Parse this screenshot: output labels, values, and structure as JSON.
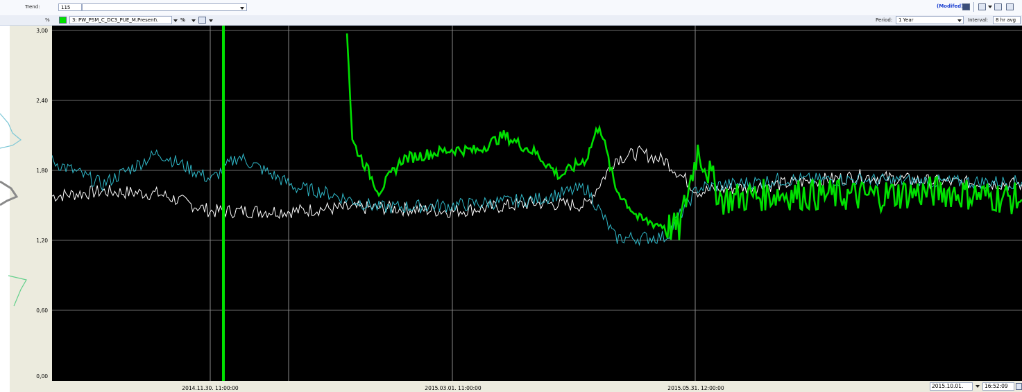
{
  "toolbar": {
    "trend_label": "Trend:",
    "trend_value": "115",
    "trend_name_value": "",
    "modified_label": "(Modifed)",
    "unit_label": "%",
    "series_selector": "3: PW_PSM_C_DC3_PUE_M.Present\\",
    "series_color": "#00e000",
    "percent_menu": "%",
    "period_label": "Period:",
    "period_value": "1 Year",
    "interval_label": "Interval:",
    "interval_value": "8 hr avg"
  },
  "y_axis": {
    "ticks": [
      "3,00",
      "2,40",
      "1,80",
      "1,20",
      "0,60",
      "0,00"
    ],
    "values": [
      3.0,
      2.4,
      1.8,
      1.2,
      0.6,
      0.0
    ]
  },
  "x_axis": {
    "ticks": [
      "2014.11.30. 11:00:00",
      "2015.03.01. 11:00:00",
      "2015.05.31. 12:00:00"
    ]
  },
  "footer": {
    "end_date": "2015.10.01.",
    "end_time": "16:52:09"
  },
  "chart_data": {
    "type": "line",
    "ylim": [
      0,
      3
    ],
    "background": "#000000",
    "series": [
      {
        "color": "#00e000",
        "x": [
          "2015.01.20",
          "2015.01.22",
          "2015.02.01",
          "2015.02.10",
          "2015.03.01",
          "2015.03.10",
          "2015.03.20",
          "2015.04.01",
          "2015.04.10",
          "2015.04.20",
          "2015.04.25",
          "2015.05.01",
          "2015.05.10",
          "2015.05.20",
          "2015.05.25",
          "2015.06.01",
          "2015.06.10",
          "2015.07.01",
          "2015.08.01",
          "2015.09.01",
          "2015.10.01"
        ],
        "y": [
          3.0,
          2.05,
          1.62,
          1.9,
          1.98,
          1.97,
          2.1,
          1.95,
          1.75,
          1.9,
          2.2,
          1.65,
          1.38,
          1.32,
          1.3,
          1.98,
          1.55,
          1.6,
          1.58,
          1.62,
          1.55
        ]
      },
      {
        "color": "#2fb8c8",
        "x": [
          "2014.10.01",
          "2014.10.20",
          "2014.11.10",
          "2014.11.30",
          "2014.12.10",
          "2015.01.01",
          "2015.01.10",
          "2015.02.01",
          "2015.03.01",
          "2015.04.01",
          "2015.04.20",
          "2015.05.01",
          "2015.05.10",
          "2015.05.20",
          "2015.06.01",
          "2015.07.01",
          "2015.08.01",
          "2015.09.01",
          "2015.10.01"
        ],
        "y": [
          1.88,
          1.68,
          1.95,
          1.72,
          1.92,
          1.65,
          1.62,
          1.48,
          1.5,
          1.55,
          1.65,
          1.22,
          1.22,
          1.23,
          1.65,
          1.72,
          1.72,
          1.7,
          1.7
        ]
      },
      {
        "color": "#ffffff",
        "x": [
          "2014.10.01",
          "2014.10.20",
          "2014.11.10",
          "2014.11.30",
          "2014.12.10",
          "2015.01.01",
          "2015.01.10",
          "2015.02.01",
          "2015.03.01",
          "2015.04.01",
          "2015.04.20",
          "2015.05.01",
          "2015.05.10",
          "2015.05.20",
          "2015.06.01",
          "2015.07.01",
          "2015.08.01",
          "2015.09.01",
          "2015.10.01"
        ],
        "y": [
          1.58,
          1.62,
          1.6,
          1.45,
          1.45,
          1.45,
          1.47,
          1.48,
          1.45,
          1.52,
          1.5,
          1.9,
          1.95,
          1.88,
          1.62,
          1.68,
          1.75,
          1.7,
          1.68
        ]
      }
    ]
  }
}
